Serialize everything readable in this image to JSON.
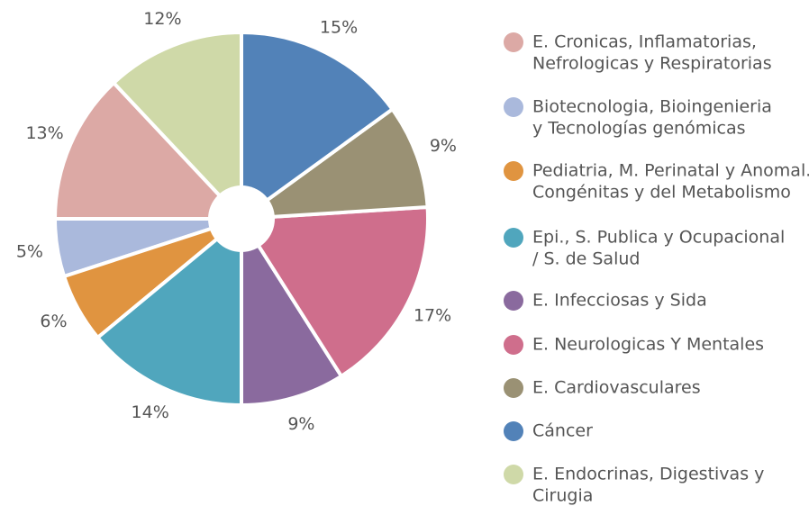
{
  "chart_data": {
    "type": "pie",
    "categories": [
      [
        "E. Cronicas, Inflamatorias,",
        "Nefrologicas y Respiratorias"
      ],
      [
        "Biotecnologia, Bioingenieria",
        "y Tecnologías genómicas"
      ],
      [
        "Pediatria, M. Perinatal y Anomal.",
        "Congénitas y del Metabolismo"
      ],
      [
        "Epi., S. Publica y Ocupacional",
        "/ S. de Salud"
      ],
      [
        "E. Infecciosas y Sida"
      ],
      [
        "E. Neurologicas Y Mentales"
      ],
      [
        "E. Cardiovasculares"
      ],
      [
        "Cáncer"
      ],
      [
        "E. Endocrinas, Digestivas y",
        "Cirugia"
      ]
    ],
    "values": [
      13,
      5,
      6,
      14,
      9,
      17,
      9,
      15,
      12
    ],
    "value_labels": [
      "13%",
      "5%",
      "6%",
      "14%",
      "9%",
      "17%",
      "9%",
      "15%",
      "12%"
    ],
    "colors": [
      "#dca9a5",
      "#aab9dc",
      "#e09440",
      "#50a6bd",
      "#8a6a9e",
      "#cf6e8c",
      "#9a9174",
      "#5282b8",
      "#cfd9a8"
    ],
    "startangle": 133.2,
    "counterclock": true,
    "donut_hole": true,
    "legend": "right"
  }
}
